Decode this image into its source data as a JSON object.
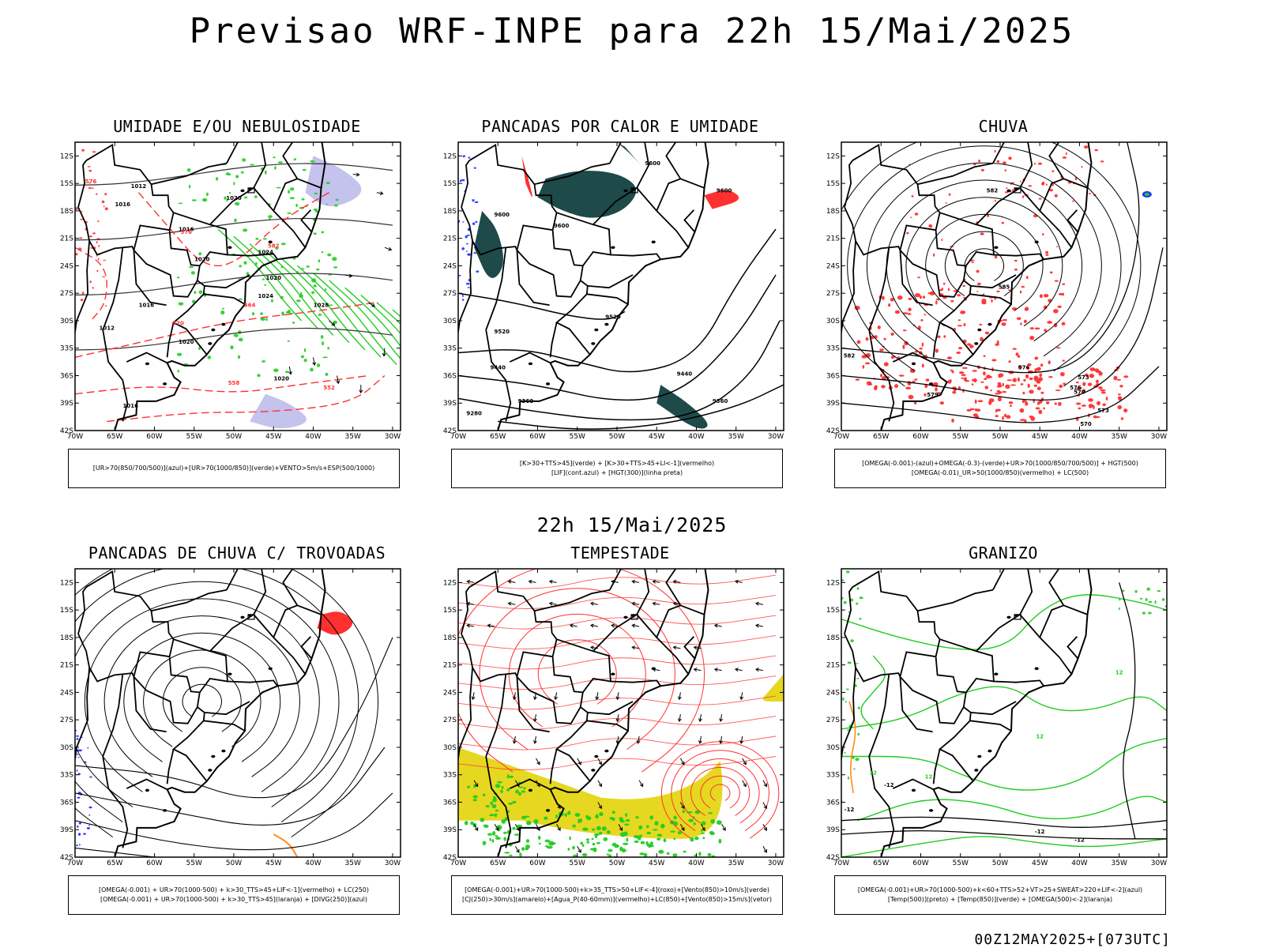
{
  "header": {
    "title": "Previsao WRF-INPE  para 22h 15/Mai/2025",
    "mid_title": "22h 15/Mai/2025",
    "footer": "00Z12MAY2025+[073UTC]"
  },
  "colors": {
    "red": "#ff3030",
    "green": "#22cc22",
    "blue": "#2233ff",
    "teal": "#1e4a4a",
    "yellow": "#e6d820",
    "orange": "#ff8c1a",
    "lavender": "#b4b4e8"
  },
  "axes": {
    "lat_labels": [
      "12S",
      "15S",
      "18S",
      "21S",
      "24S",
      "27S",
      "30S",
      "33S",
      "36S",
      "39S",
      "42S"
    ],
    "lon_labels": [
      "70W",
      "65W",
      "60W",
      "55W",
      "50W",
      "45W",
      "40W",
      "35W",
      "30W"
    ]
  },
  "chart_data": [
    {
      "type": "map",
      "title": "UMIDADE E/OU NEBULOSIDADE",
      "legend": [
        "[UR>70(850/700/500)](azul)+[UR>70(1000/850)](verde)+VENTO>5m/s+ESP(500/1000)"
      ],
      "contour_labels": [
        "1016",
        "1012",
        "1020",
        "1016",
        "1020",
        "1024",
        "1020",
        "1016",
        "1012",
        "1020",
        "1024",
        "1028",
        "1020",
        "1016",
        "576",
        "570",
        "564",
        "558",
        "552",
        "576",
        "582"
      ],
      "xlim": [
        -70,
        -29
      ],
      "ylim": [
        -42,
        -10.5
      ]
    },
    {
      "type": "map",
      "title": "PANCADAS POR CALOR E UMIDADE",
      "legend": [
        "[K>30+TTS>45](verde) + [K>30+TTS>45+LI<-1](vermelho)",
        "[LIF](cont.azul) + [HGT(300)](linha preta)"
      ],
      "contour_labels": [
        "9600",
        "9600",
        "9600",
        "9600",
        "9520",
        "9440",
        "9360",
        "9280",
        "9520",
        "9440",
        "9360"
      ],
      "xlim": [
        -70,
        -29
      ],
      "ylim": [
        -42,
        -10.5
      ]
    },
    {
      "type": "map",
      "title": "CHUVA",
      "legend": [
        "[OMEGA(-0.001)-(azul)+OMEGA(-0.3)-(verde)+UR>70(1000/850/700/500)] + HGT(500)",
        "[OMEGA(-0.01)_UR>50(1000/850)(vermelho) + LC(500)"
      ],
      "contour_labels": [
        "582",
        "585",
        "582",
        "579",
        "576",
        "573",
        "570",
        "576",
        "573",
        "570"
      ],
      "xlim": [
        -70,
        -29
      ],
      "ylim": [
        -42,
        -10.5
      ]
    },
    {
      "type": "map",
      "title": "PANCADAS DE CHUVA C/ TROVOADAS",
      "legend": [
        "[OMEGA(-0.001) + UR>70(1000-500) + k>30_TTS>45+LIF<-1](vermelho) + LC(250)",
        "[OMEGA(-0.001) + UR>70(1000-500) + k>30_TTS>45](laranja) + [DIVG(250)](azul)"
      ],
      "contour_labels": [],
      "xlim": [
        -70,
        -29
      ],
      "ylim": [
        -42,
        -10.5
      ]
    },
    {
      "type": "map",
      "title": "TEMPESTADE",
      "legend": [
        "[OMEGA(-0.001)+UR>70(1000-500)+k>35_TTS>50+LIF<-4](roxo)+[Vento(850)>10m/s](verde)",
        "[CJ(250)>30m/s](amarelo)+[Agua_P(40-60mm)](vermelho)+LC(850)+[Vento(850)>15m/s](vetor)"
      ],
      "contour_labels": [],
      "xlim": [
        -70,
        -29
      ],
      "ylim": [
        -42,
        -10.5
      ]
    },
    {
      "type": "map",
      "title": "GRANIZO",
      "legend": [
        "[OMEGA(-0.001)+UR>70(1000-500)+k<60+TTS>52+VT>25+SWEAT>220+LIF<-2](azul)",
        "[Temp(500)](preto) + [Temp(850)](verde) + [OMEGA(500)<-2](laranja)"
      ],
      "contour_labels": [
        "-12",
        "-12",
        "-12",
        "-12",
        "12",
        "12",
        "12",
        "12"
      ],
      "xlim": [
        -70,
        -29
      ],
      "ylim": [
        -42,
        -10.5
      ]
    }
  ]
}
